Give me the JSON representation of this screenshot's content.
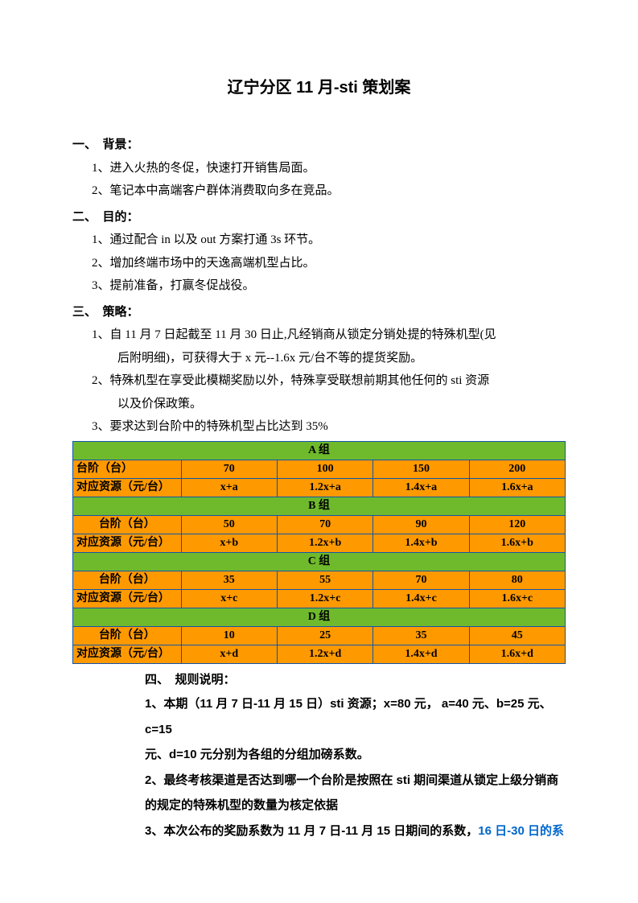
{
  "title": "辽宁分区 11 月-sti 策划案",
  "sections": {
    "bg": {
      "head": "一、　背景：",
      "items": [
        "1、进入火热的冬促，快速打开销售局面。",
        "2、笔记本中高端客户群体消费取向多在竞品。"
      ]
    },
    "goal": {
      "head": "二、　目的：",
      "items": [
        "1、通过配合 in 以及 out 方案打通 3s 环节。",
        "2、增加终端市场中的天逸高端机型占比。",
        "3、提前准备，打赢冬促战役。"
      ]
    },
    "strategy": {
      "head": "三、　策略：",
      "item1a": "1、自 11 月 7 日起截至 11 月 30 日止,凡经销商从锁定分销处提的特殊机型(见",
      "item1b": "后附明细)，可获得大于 x 元--1.6x 元/台不等的提货奖励。",
      "item2a": "2、特殊机型在享受此模糊奖励以外，特殊享受联想前期其他任何的 sti 资源",
      "item2b": "以及价保政策。",
      "item3": "3、要求达到台阶中的特殊机型占比达到 35%"
    }
  },
  "table": {
    "col_widths": [
      "22%",
      "19.5%",
      "19.5%",
      "19.5%",
      "19.5%"
    ],
    "row_label_tier": "台阶（台）",
    "row_label_res": "对应资源（元/台）",
    "groups": [
      {
        "name": "A 组",
        "label_align": "left",
        "tiers": [
          "70",
          "100",
          "150",
          "200"
        ],
        "res": [
          "x+a",
          "1.2x+a",
          "1.4x+a",
          "1.6x+a"
        ]
      },
      {
        "name": "B 组",
        "label_align": "center",
        "tiers": [
          "50",
          "70",
          "90",
          "120"
        ],
        "res": [
          "x+b",
          "1.2x+b",
          "1.4x+b",
          "1.6x+b"
        ]
      },
      {
        "name": "C 组",
        "label_align": "center",
        "tiers": [
          "35",
          "55",
          "70",
          "80"
        ],
        "res": [
          "x+c",
          "1.2x+c",
          "1.4x+c",
          "1.6x+c"
        ]
      },
      {
        "name": "D 组",
        "label_align": "center",
        "tiers": [
          "10",
          "25",
          "35",
          "45"
        ],
        "res": [
          "x+d",
          "1.2x+d",
          "1.4x+d",
          "1.6x+d"
        ]
      }
    ],
    "colors": {
      "group_bg": "#6fba2c",
      "cell_bg": "#ff9900",
      "border": "#1155aa"
    }
  },
  "rules": {
    "head": "四、　规则说明：",
    "r1a": "1、本期（11 月 7 日-11 月 15 日）sti 资源；x=80 元， a=40 元、b=25 元、c=15",
    "r1b": "元、d=10 元分别为各组的分组加磅系数。",
    "r2a": "2、最终考核渠道是否达到哪一个台阶是按照在 sti 期间渠道从锁定上级分销商",
    "r2b": "的规定的特殊机型的数量为核定依据",
    "r3a": "3、本次公布的奖励系数为 11 月 7 日-11 月 15 日期间的系数，",
    "r3b": "16 日-30 日的系"
  }
}
